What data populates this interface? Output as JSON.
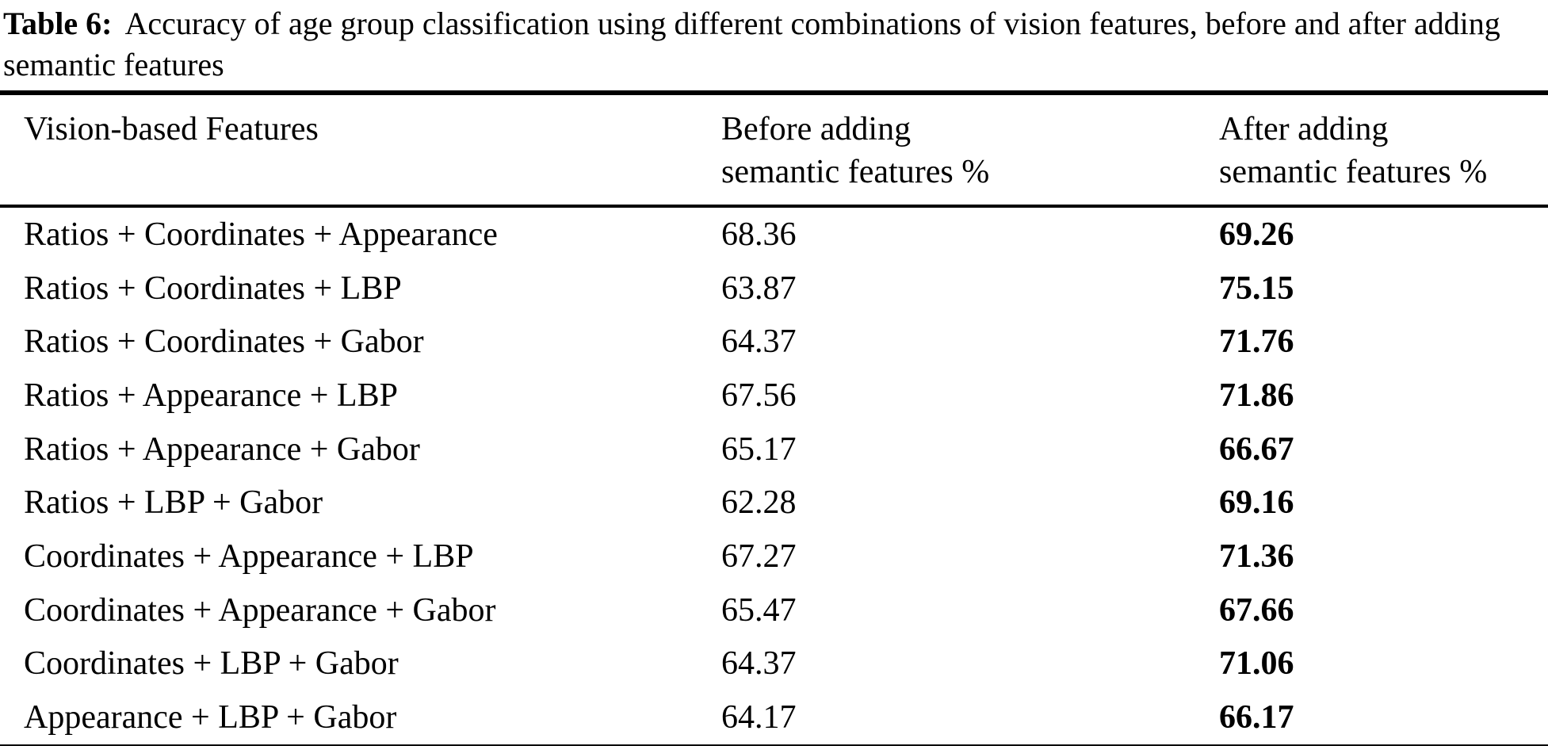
{
  "caption": {
    "label": "Table 6:",
    "text": "Accuracy of age group classification using different combinations of vision features, before and after adding semantic features"
  },
  "table": {
    "columns": [
      {
        "line1": "Vision-based Features",
        "line2": ""
      },
      {
        "line1": "Before adding",
        "line2": "semantic features %"
      },
      {
        "line1": "After adding",
        "line2": "semantic features %"
      }
    ],
    "rows": [
      {
        "features": "Ratios + Coordinates + Appearance",
        "before": "68.36",
        "after": "69.26"
      },
      {
        "features": "Ratios + Coordinates + LBP",
        "before": "63.87",
        "after": "75.15"
      },
      {
        "features": "Ratios + Coordinates + Gabor",
        "before": "64.37",
        "after": "71.76"
      },
      {
        "features": "Ratios + Appearance + LBP",
        "before": "67.56",
        "after": "71.86"
      },
      {
        "features": "Ratios + Appearance + Gabor",
        "before": "65.17",
        "after": "66.67"
      },
      {
        "features": "Ratios + LBP + Gabor",
        "before": "62.28",
        "after": "69.16"
      },
      {
        "features": "Coordinates + Appearance + LBP",
        "before": "67.27",
        "after": "71.36"
      },
      {
        "features": "Coordinates + Appearance + Gabor",
        "before": "65.47",
        "after": "67.66"
      },
      {
        "features": "Coordinates + LBP + Gabor",
        "before": "64.37",
        "after": "71.06"
      },
      {
        "features": "Appearance + LBP + Gabor",
        "before": "64.17",
        "after": "66.17"
      }
    ]
  },
  "colors": {
    "text": "#000000",
    "background": "#ffffff",
    "rule": "#000000"
  }
}
